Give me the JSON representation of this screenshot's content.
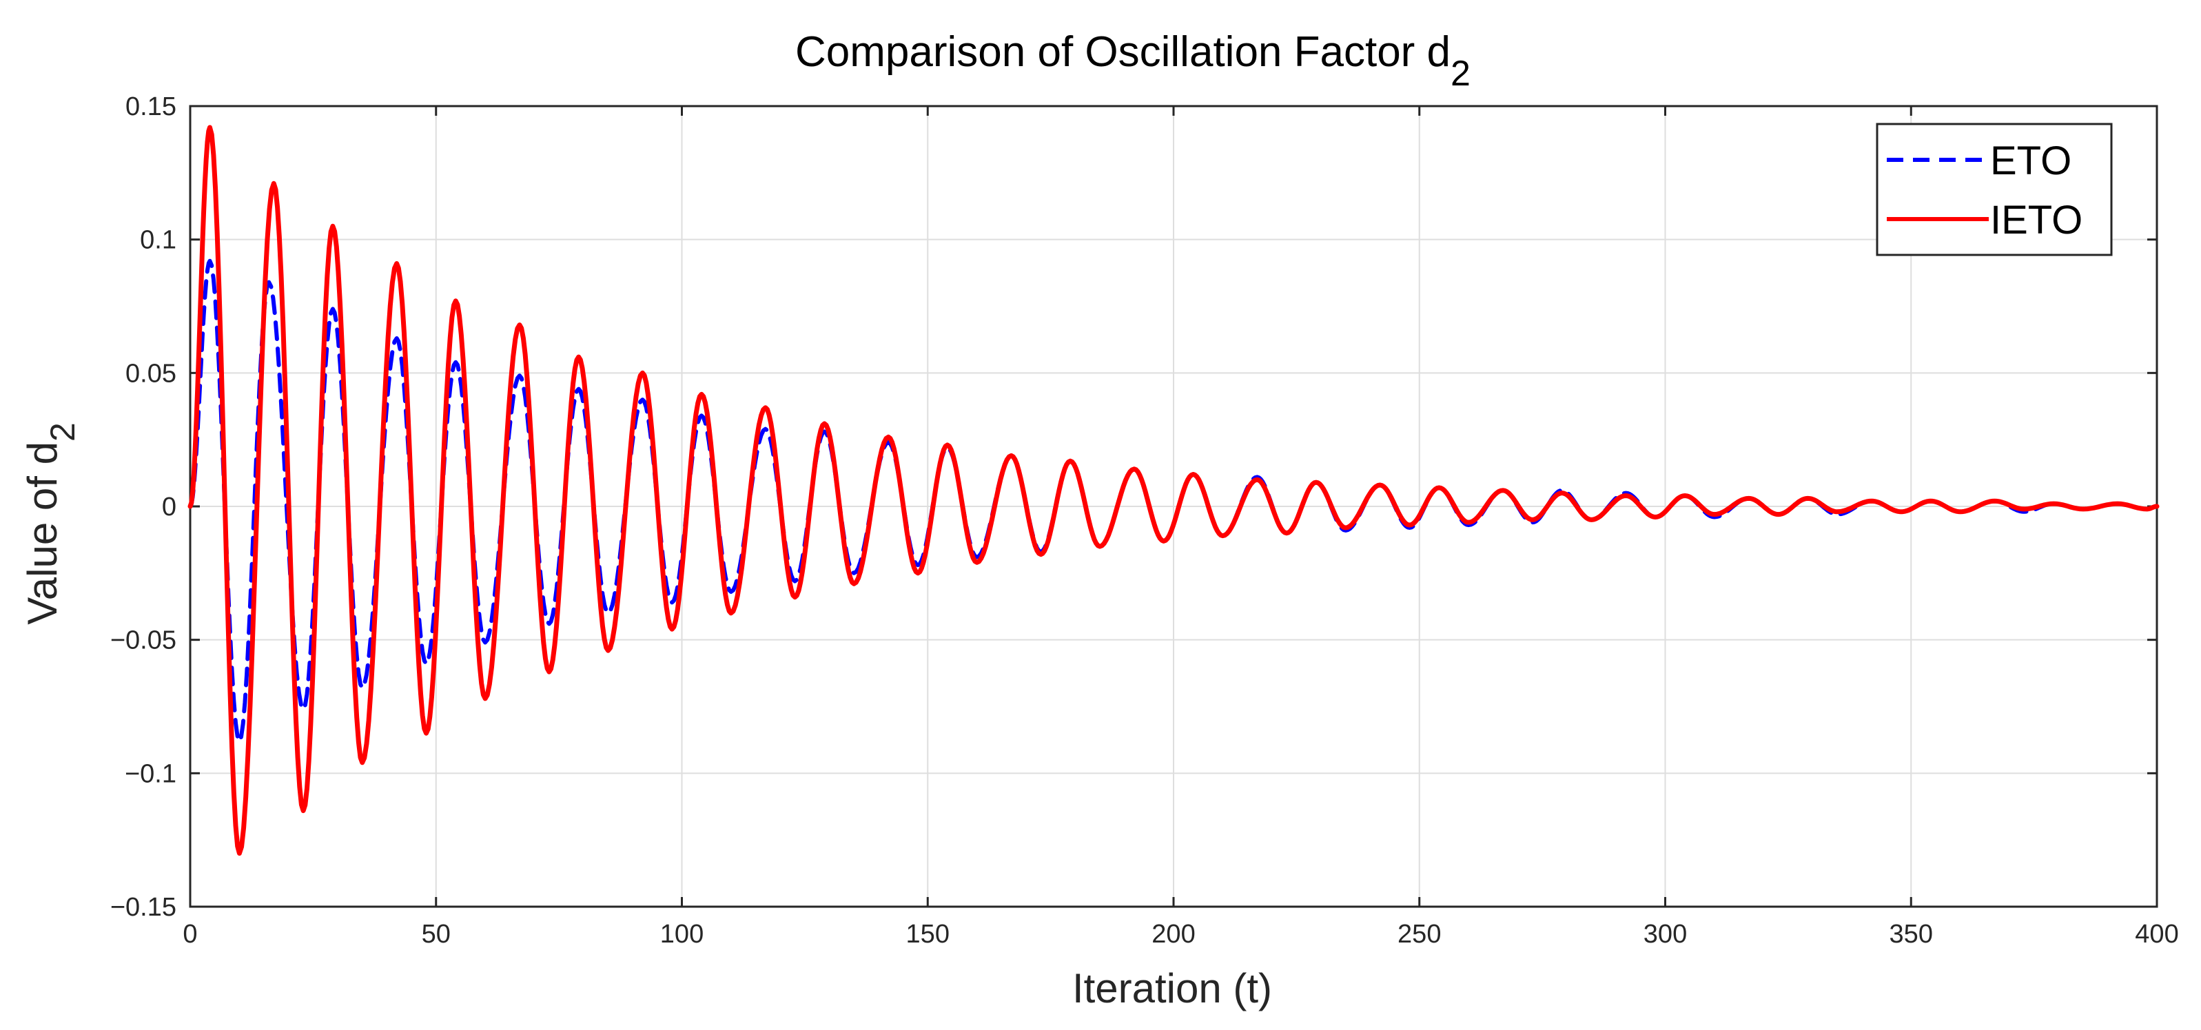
{
  "chart_data": {
    "type": "line",
    "title": "Comparison of Oscillation Factor d",
    "title_subscript": "2",
    "xlabel": "Iteration (t)",
    "ylabel": "Value of d",
    "ylabel_subscript": "2",
    "xlim": [
      0,
      400
    ],
    "ylim": [
      -0.15,
      0.15
    ],
    "x_ticks": [
      0,
      50,
      100,
      150,
      200,
      250,
      300,
      350,
      400
    ],
    "y_ticks": [
      -0.15,
      -0.1,
      -0.05,
      0,
      0.05,
      0.1,
      0.15
    ],
    "x_tick_labels": [
      "0",
      "50",
      "100",
      "150",
      "200",
      "250",
      "300",
      "350",
      "400"
    ],
    "y_tick_labels": [
      "−0.15",
      "−0.1",
      "−0.05",
      "0",
      "0.05",
      "0.1",
      "0.15"
    ],
    "grid": true,
    "legend_position": "top-right",
    "series": [
      {
        "name": "ETO",
        "color": "#0000ff",
        "style": "dashed",
        "x": [
          0,
          4,
          10,
          16,
          23,
          29,
          35,
          42,
          48,
          54,
          60,
          67,
          73,
          79,
          85,
          92,
          98,
          104,
          110,
          117,
          123,
          129,
          135,
          142,
          148,
          154,
          160,
          167,
          173,
          179,
          185,
          192,
          198,
          204,
          210,
          217,
          223,
          229,
          235,
          242,
          248,
          254,
          260,
          267,
          273,
          279,
          285,
          292,
          298,
          304,
          310,
          317,
          323,
          329,
          335,
          342,
          348,
          354,
          360,
          367,
          373,
          379,
          385,
          392,
          398,
          400
        ],
        "y": [
          0,
          0.092,
          -0.088,
          0.084,
          -0.076,
          0.074,
          -0.068,
          0.063,
          -0.059,
          0.054,
          -0.051,
          0.049,
          -0.044,
          0.044,
          -0.04,
          0.04,
          -0.036,
          0.034,
          -0.032,
          0.029,
          -0.028,
          0.028,
          -0.025,
          0.024,
          -0.022,
          0.022,
          -0.019,
          0.019,
          -0.017,
          0.017,
          -0.015,
          0.014,
          -0.013,
          0.012,
          -0.011,
          0.011,
          -0.01,
          0.009,
          -0.009,
          0.008,
          -0.008,
          0.007,
          -0.007,
          0.006,
          -0.006,
          0.006,
          -0.005,
          0.005,
          -0.004,
          0.004,
          -0.004,
          0.003,
          -0.003,
          0.003,
          -0.003,
          0.002,
          -0.002,
          0.002,
          -0.002,
          0.002,
          -0.002,
          0.001,
          -0.001,
          0.001,
          -0.001,
          0
        ]
      },
      {
        "name": "IETO",
        "color": "#ff0000",
        "style": "solid",
        "x": [
          0,
          4,
          10,
          17,
          23,
          29,
          35,
          42,
          48,
          54,
          60,
          67,
          73,
          79,
          85,
          92,
          98,
          104,
          110,
          117,
          123,
          129,
          135,
          142,
          148,
          154,
          160,
          167,
          173,
          179,
          185,
          192,
          198,
          204,
          210,
          217,
          223,
          229,
          235,
          242,
          248,
          254,
          260,
          267,
          273,
          279,
          285,
          292,
          298,
          304,
          310,
          317,
          323,
          329,
          335,
          342,
          348,
          354,
          360,
          367,
          373,
          379,
          385,
          392,
          398,
          400
        ],
        "y": [
          0,
          0.142,
          -0.13,
          0.121,
          -0.114,
          0.105,
          -0.096,
          0.091,
          -0.085,
          0.077,
          -0.072,
          0.068,
          -0.062,
          0.056,
          -0.054,
          0.05,
          -0.046,
          0.042,
          -0.04,
          0.037,
          -0.034,
          0.031,
          -0.029,
          0.026,
          -0.025,
          0.023,
          -0.021,
          0.019,
          -0.018,
          0.017,
          -0.015,
          0.014,
          -0.013,
          0.012,
          -0.011,
          0.01,
          -0.01,
          0.009,
          -0.008,
          0.008,
          -0.007,
          0.007,
          -0.006,
          0.006,
          -0.005,
          0.005,
          -0.005,
          0.004,
          -0.004,
          0.004,
          -0.003,
          0.003,
          -0.003,
          0.003,
          -0.002,
          0.002,
          -0.002,
          0.002,
          -0.002,
          0.002,
          -0.001,
          0.001,
          -0.001,
          0.001,
          -0.001,
          0
        ]
      }
    ]
  }
}
